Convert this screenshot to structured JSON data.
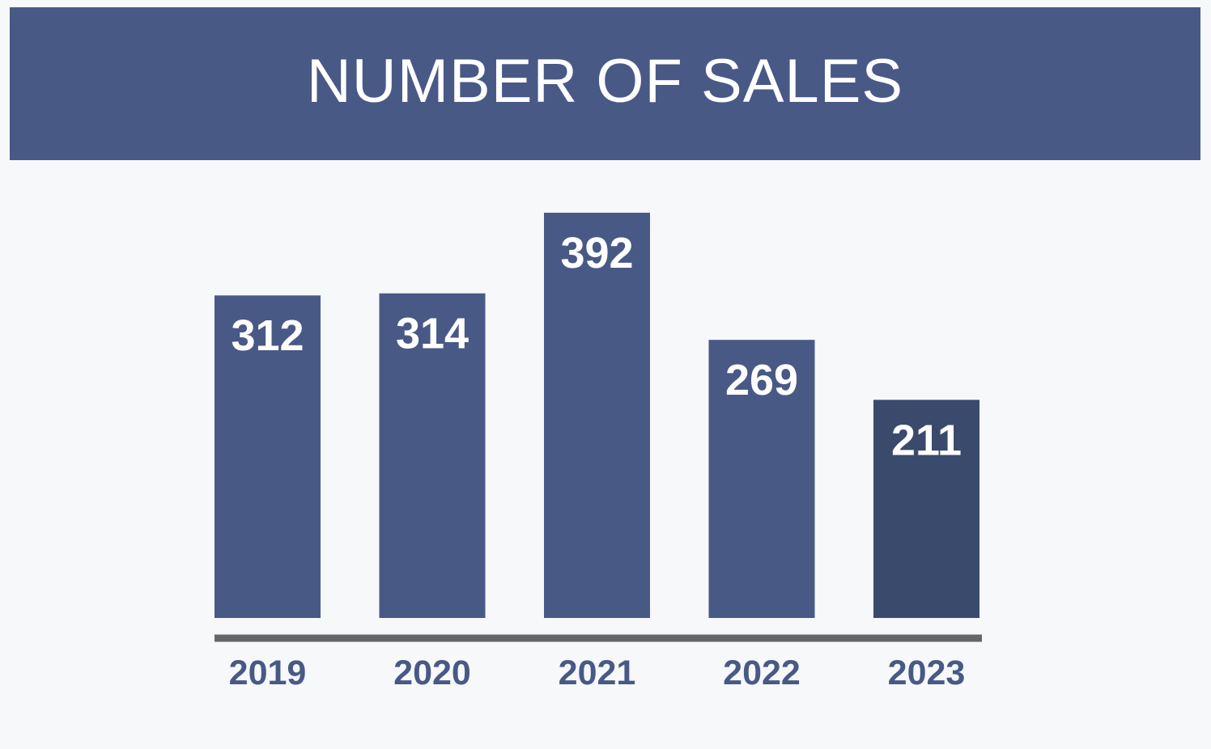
{
  "chart_data": {
    "type": "bar",
    "title": "NUMBER OF SALES",
    "categories": [
      "2019",
      "2020",
      "2021",
      "2022",
      "2023"
    ],
    "values": [
      312,
      314,
      392,
      269,
      211
    ],
    "ylim": [
      0,
      392
    ],
    "grid": false,
    "legend": "none",
    "colors": {
      "banner": "#495986",
      "bar": "#495986",
      "bar_highlight": "#3a4a6c",
      "axis": "#666666",
      "tick_text": "#495986",
      "background": "#f6f8fa"
    },
    "highlight_index": 4
  }
}
